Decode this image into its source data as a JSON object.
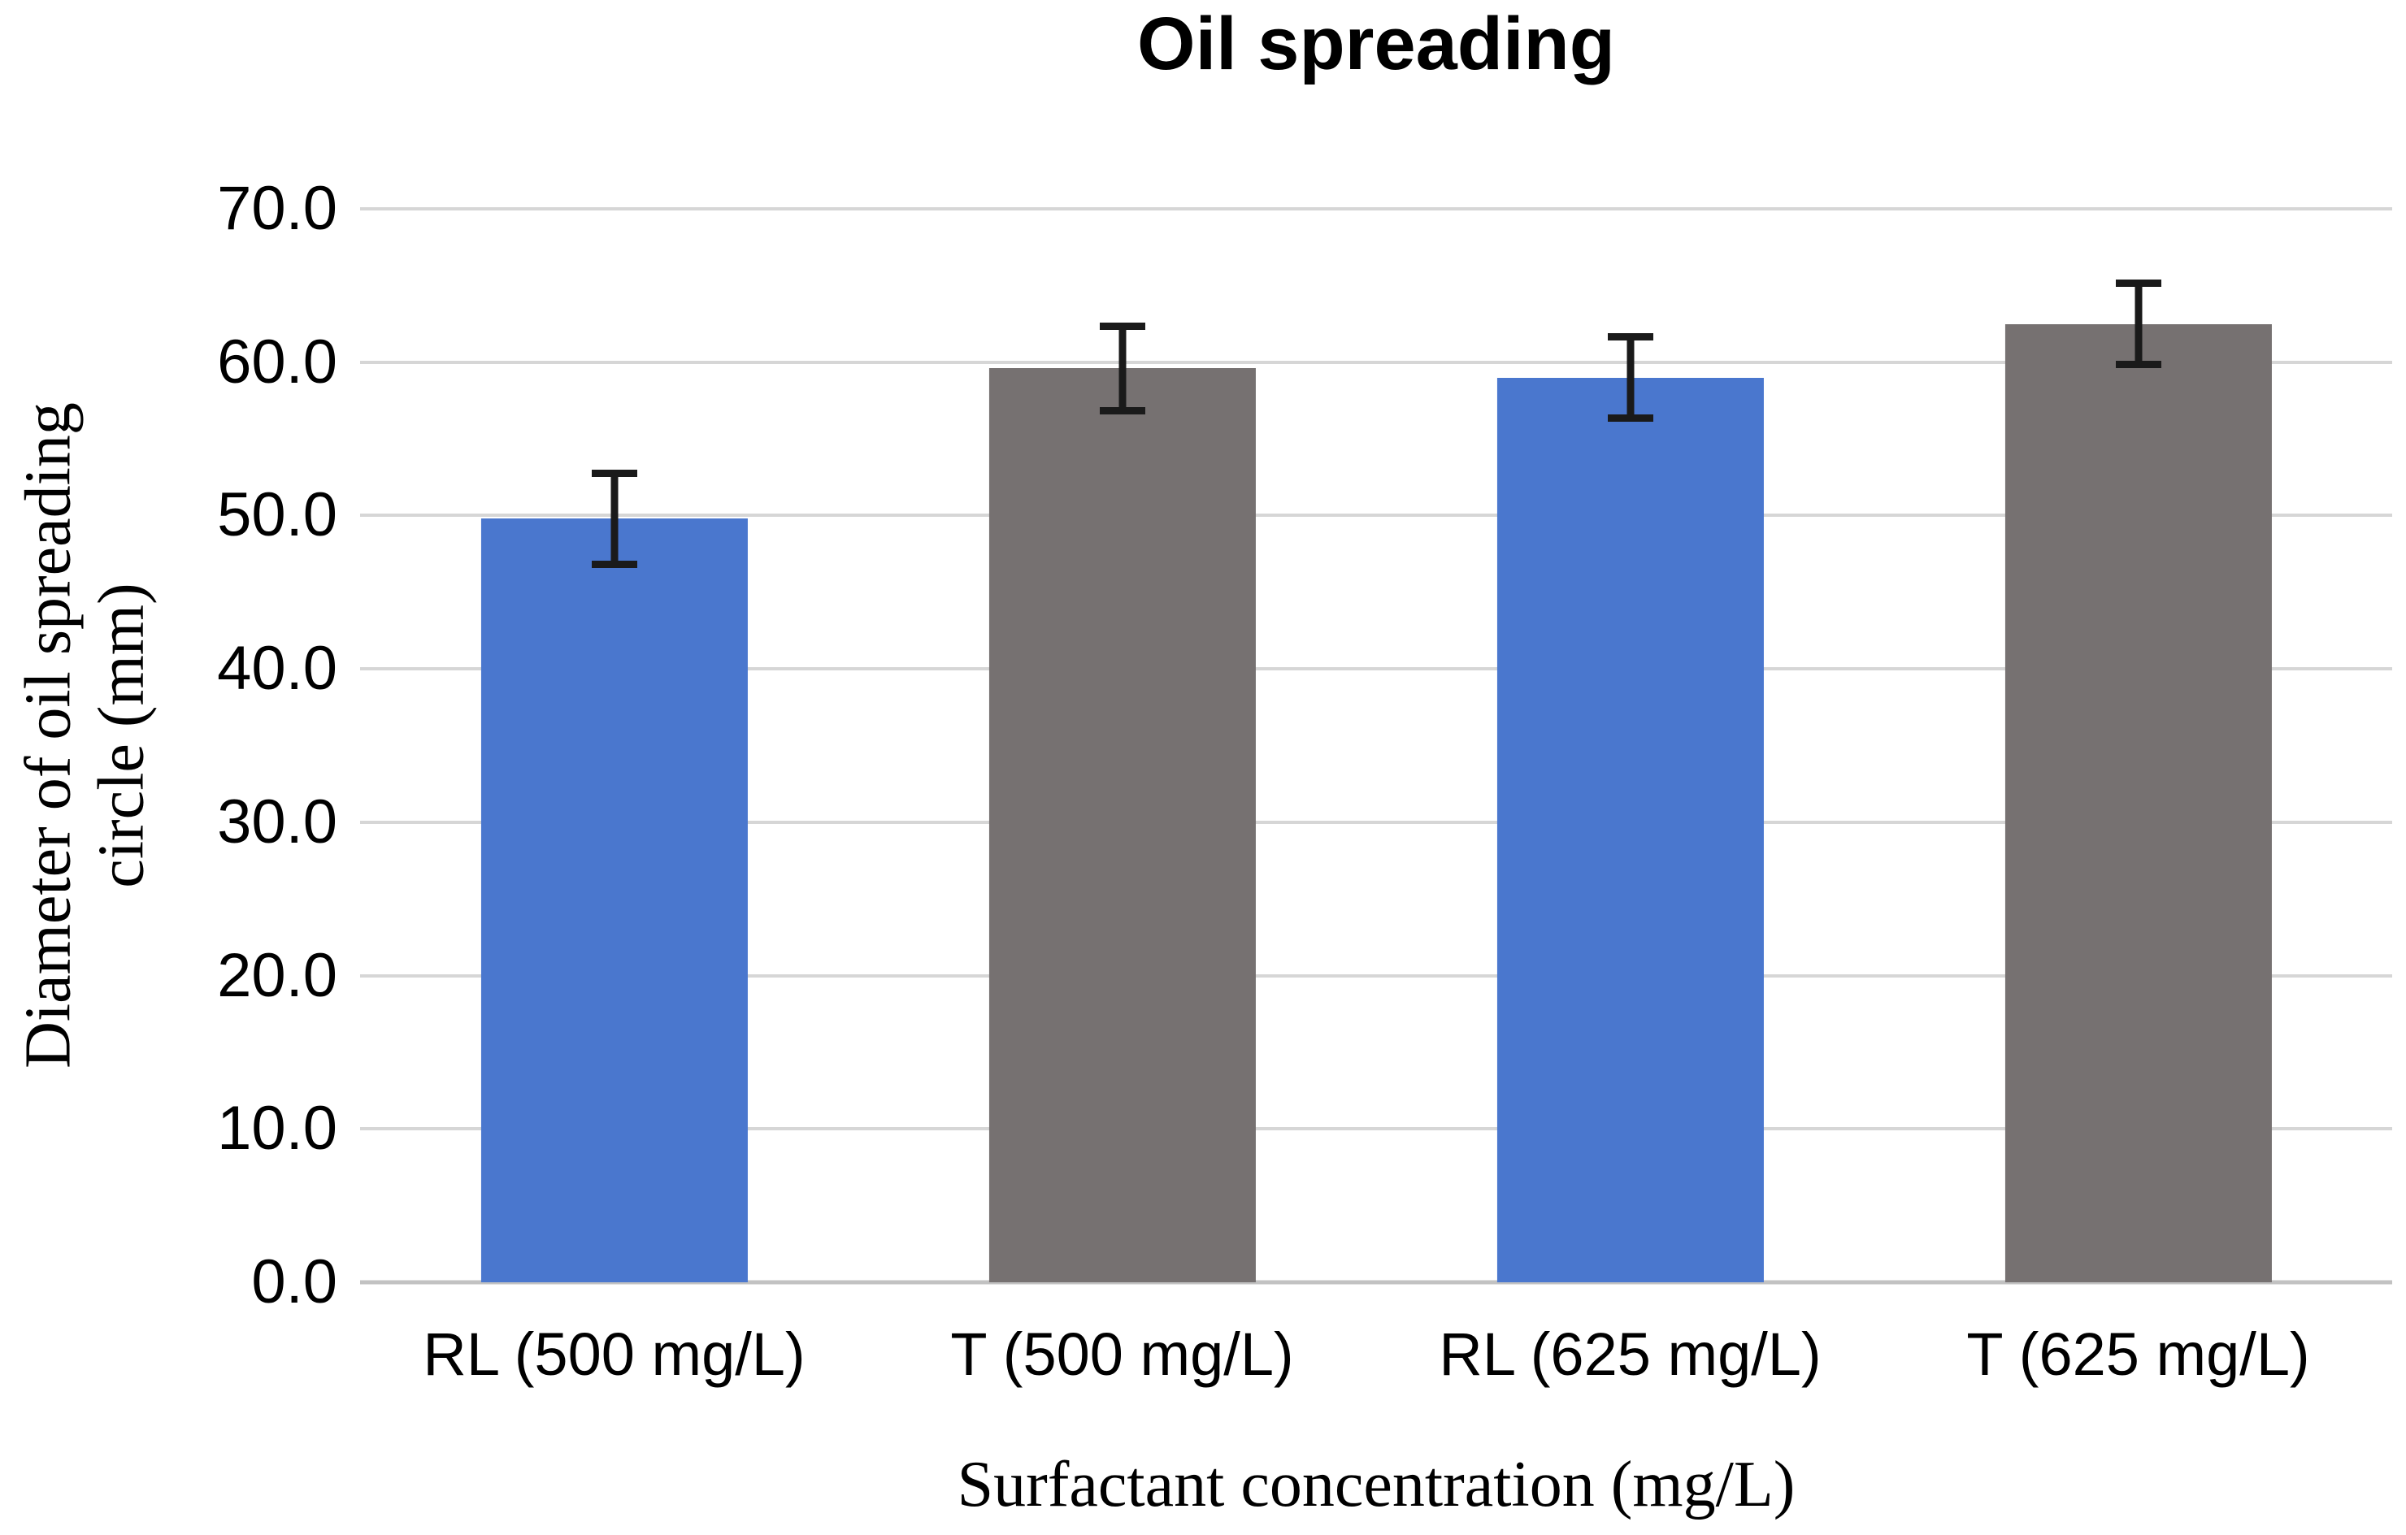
{
  "chart_data": {
    "type": "bar",
    "title": "Oil spreading",
    "categories": [
      "RL (500 mg/L)",
      "T (500 mg/L)",
      "RL (625 mg/L)",
      "T (625 mg/L)"
    ],
    "values": [
      49.8,
      59.6,
      59.0,
      62.5
    ],
    "error_bars": [
      3.2,
      3.0,
      2.9,
      2.9
    ],
    "bar_colors": [
      "#4A77CE",
      "#767171",
      "#4A77CE",
      "#767171"
    ],
    "xlabel": "Surfactant concentration (mg/L)",
    "ylabel": "Diameter of oil spreading circle (mm)",
    "ylabel_lines": [
      "Diameter of oil spreading",
      "circle (mm)"
    ],
    "ytick_values": [
      0,
      10,
      20,
      30,
      40,
      50,
      60,
      70
    ],
    "ytick_labels": [
      "0.0",
      "10.0",
      "20.0",
      "30.0",
      "40.0",
      "50.0",
      "60.0",
      "70.0"
    ],
    "ylim": [
      0,
      70
    ],
    "grid": "horizontal",
    "legend": "none",
    "colors": {
      "blue_series": "#4A77CE",
      "gray_series": "#767171",
      "gridline": "#d6d6d6",
      "axis_line": "#c2c2c2",
      "error_bar": "#1a1a1a",
      "text": "#000000",
      "background": "#ffffff"
    }
  }
}
